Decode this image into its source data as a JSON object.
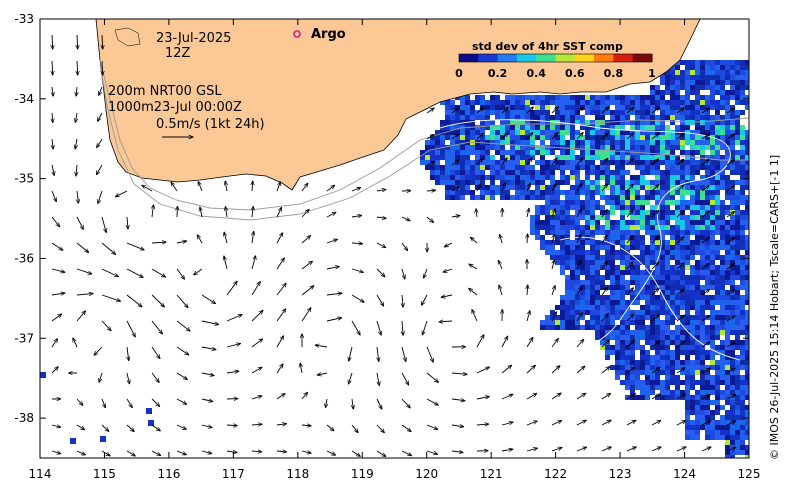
{
  "map": {
    "date_line": "23-Jul-2025",
    "hour_line": "12Z",
    "product_line_1": "200m  NRT00 GSL",
    "product_line_2": "1000m23-Jul 00:00Z",
    "scale_arrow_label": "0.5m/s (1kt 24h)",
    "argo_label": "Argo",
    "colorbar": {
      "title": "std dev of 4hr SST comp",
      "ticks": [
        "0",
        "0.2",
        "0.4",
        "0.6",
        "0.8",
        "1"
      ],
      "colors": [
        "#0c0c8c",
        "#1a37d8",
        "#1f7ef0",
        "#19c8e6",
        "#3ee08f",
        "#b4e83a",
        "#ffd21a",
        "#ff7a12",
        "#d61e0e",
        "#7a0a06"
      ]
    },
    "x_axis": {
      "ticks": [
        "114",
        "115",
        "116",
        "117",
        "118",
        "119",
        "120",
        "121",
        "122",
        "123",
        "124",
        "125"
      ],
      "min": 114,
      "max": 125
    },
    "y_axis": {
      "ticks": [
        "-33",
        "-34",
        "-35",
        "-36",
        "-37",
        "-38"
      ],
      "min": -38.5,
      "max": -33
    },
    "credit": "© IMOS 26-Jul-2025 15:14 Hobart; Tscale=CARS+[-1 1]",
    "colors": {
      "land": "#fbc896",
      "land_outline": "#000000",
      "isobath": "#9a9a9a",
      "arrow": "#000000",
      "argo": "#e0148c"
    }
  }
}
